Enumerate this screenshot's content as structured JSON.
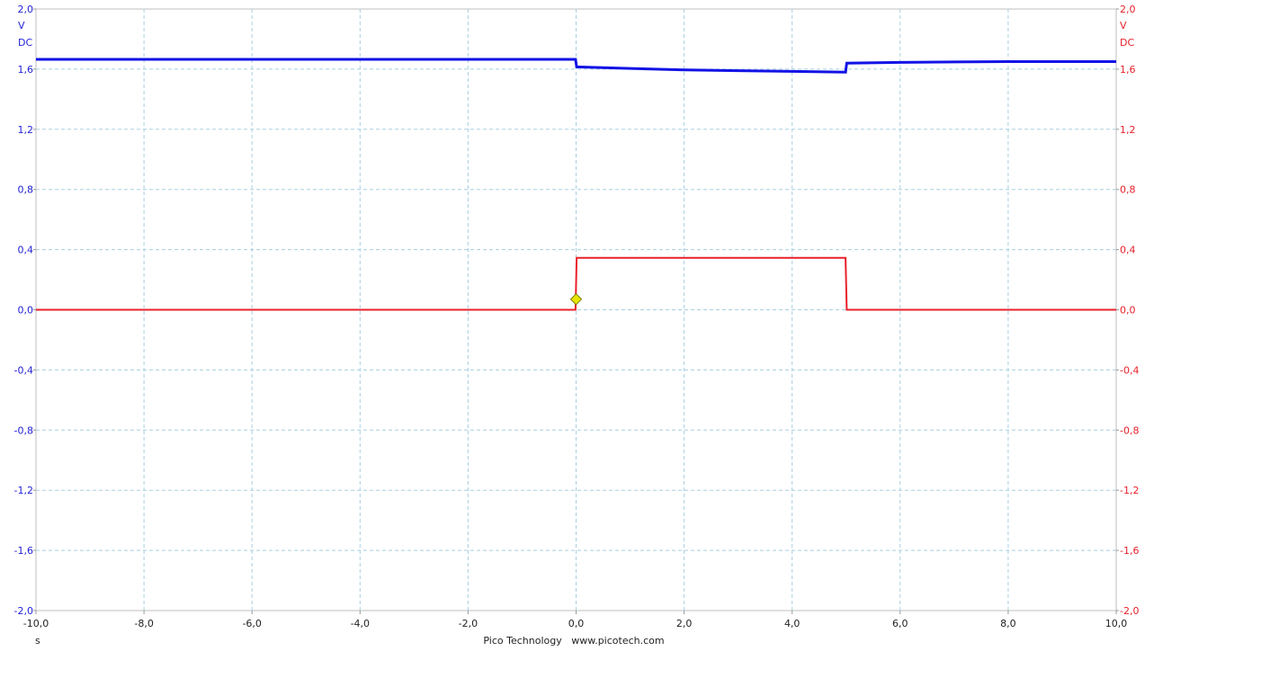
{
  "chart_data": {
    "type": "line",
    "footer": "Pico Technology   www.picotech.com",
    "x_unit": "s",
    "xlim": [
      -10,
      10
    ],
    "x_ticks": [
      "-10,0",
      "-8,0",
      "-6,0",
      "-4,0",
      "-2,0",
      "0,0",
      "2,0",
      "4,0",
      "6,0",
      "8,0",
      "10,0"
    ],
    "x_tick_values": [
      -10,
      -8,
      -6,
      -4,
      -2,
      0,
      2,
      4,
      6,
      8,
      10
    ],
    "left_axis": {
      "unit": "V",
      "coupling": "DC",
      "color": "#1f1fd6",
      "ylim": [
        -2,
        2
      ],
      "ticks": [
        "2,0",
        "1,6",
        "1,2",
        "0,8",
        "0,4",
        "0,0",
        "-0,4",
        "-0,8",
        "-1,2",
        "-1,6",
        "-2,0"
      ]
    },
    "right_axis": {
      "unit": "V",
      "coupling": "DC",
      "color": "#e8202a",
      "ylim": [
        -2,
        2
      ],
      "ticks": [
        "2,0",
        "1,6",
        "1,2",
        "0,8",
        "0,4",
        "0,0",
        "-0,4",
        "-0,8",
        "-1,2",
        "-1,6",
        "-2,0"
      ]
    },
    "y_tick_values": [
      2,
      1.6,
      1.2,
      0.8,
      0.4,
      0,
      -0.4,
      -0.8,
      -1.2,
      -1.6,
      -2
    ],
    "grid": true,
    "series": [
      {
        "channel": "A",
        "color": "#1212e6",
        "axis": "left",
        "x": [
          -10,
          -8,
          -6,
          -4,
          -2,
          -0.01,
          0.01,
          1,
          2,
          3,
          4,
          4.99,
          5.01,
          6,
          7,
          8,
          10
        ],
        "y": [
          1.665,
          1.665,
          1.665,
          1.665,
          1.665,
          1.665,
          1.615,
          1.605,
          1.595,
          1.59,
          1.585,
          1.58,
          1.64,
          1.645,
          1.648,
          1.65,
          1.65
        ]
      },
      {
        "channel": "B",
        "color": "#e8202a",
        "axis": "right",
        "x": [
          -10,
          -0.01,
          0.01,
          4.99,
          5.01,
          10
        ],
        "y": [
          0.0,
          0.0,
          0.345,
          0.345,
          0.0,
          0.0
        ]
      }
    ],
    "trigger": {
      "x": 0,
      "y": 0.07,
      "color": "#e6e600"
    }
  }
}
